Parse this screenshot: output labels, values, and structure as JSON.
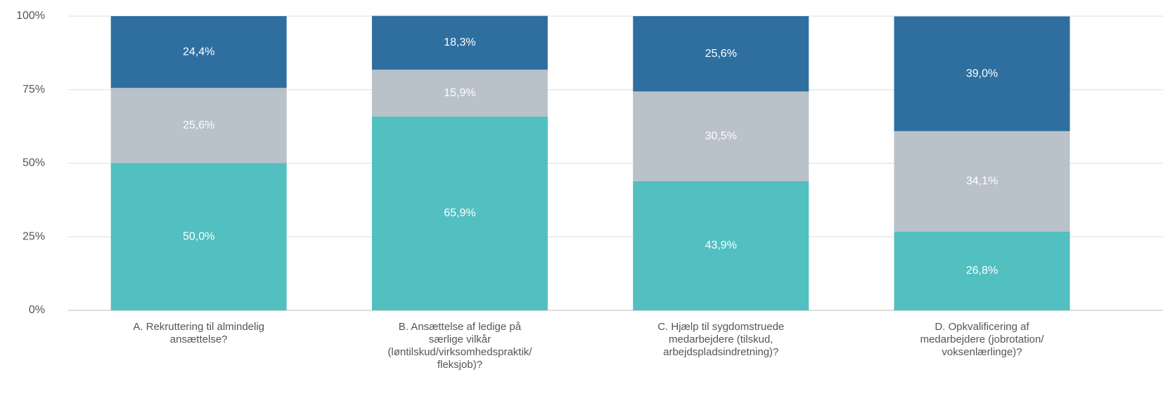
{
  "chart_data": {
    "type": "stacked_bar",
    "categories": [
      [
        "A. Rekruttering til almindelig",
        "ansættelse?"
      ],
      [
        "B. Ansættelse af ledige på",
        "særlige vilkår",
        "(løntilskud/virksomhedspraktik/",
        "fleksjob)?"
      ],
      [
        "C. Hjælp til sygdomstruede",
        "medarbejdere (tilskud,",
        "arbejdspladsindretning)?"
      ],
      [
        "D. Opkvalificering af",
        "medarbejdere (jobrotation/",
        "voksenlærlinge)?"
      ]
    ],
    "series": [
      {
        "color": "#52bfc1",
        "values": [
          50.0,
          65.9,
          43.9,
          26.8
        ],
        "value_labels": [
          "50,0%",
          "65,9%",
          "43,9%",
          "26,8%"
        ]
      },
      {
        "color": "#b9c1c9",
        "values": [
          25.6,
          15.9,
          30.5,
          34.1
        ],
        "value_labels": [
          "25,6%",
          "15,9%",
          "30,5%",
          "34,1%"
        ]
      },
      {
        "color": "#2e6fa0",
        "values": [
          24.4,
          18.3,
          25.6,
          39.0
        ],
        "value_labels": [
          "24,4%",
          "18,3%",
          "25,6%",
          "39,0%"
        ]
      }
    ],
    "ylim": [
      0,
      100
    ],
    "yticks": [
      {
        "value": 0,
        "label": "0%"
      },
      {
        "value": 25,
        "label": "25%"
      },
      {
        "value": 50,
        "label": "50%"
      },
      {
        "value": 75,
        "label": "75%"
      },
      {
        "value": 100,
        "label": "100%"
      }
    ],
    "grid": true
  }
}
